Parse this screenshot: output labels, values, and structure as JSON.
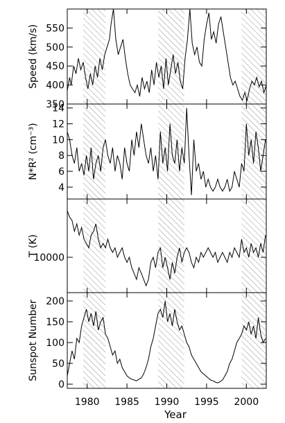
{
  "chart_data": {
    "type": "line",
    "x_label": "Year",
    "x_range": [
      1977.5,
      2002.5
    ],
    "x_ticks": [
      1980,
      1985,
      1990,
      1995,
      2000
    ],
    "x_tick_labels": [
      "1980",
      "1985",
      "1990",
      "1995",
      "2000"
    ],
    "hatched_intervals": [
      [
        1979.5,
        1982.3
      ],
      [
        1988.9,
        1992.2
      ],
      [
        1999.4,
        2002.5
      ]
    ],
    "panels": [
      {
        "ylabel": "Speed (km/s)",
        "ylim": [
          350,
          600
        ],
        "yticks": [
          350,
          400,
          450,
          500,
          550
        ],
        "ytick_labels": [
          "350",
          "400",
          "450",
          "500",
          "550"
        ],
        "series": [
          {
            "x": [
              1977.5,
              1977.8,
              1978.0,
              1978.3,
              1978.6,
              1978.9,
              1979.2,
              1979.5,
              1979.8,
              1980.1,
              1980.4,
              1980.7,
              1981.0,
              1981.3,
              1981.6,
              1981.9,
              1982.2,
              1982.5,
              1982.8,
              1983.0,
              1983.3,
              1983.6,
              1983.9,
              1984.2,
              1984.5,
              1984.8,
              1985.1,
              1985.4,
              1985.7,
              1986.0,
              1986.3,
              1986.6,
              1986.9,
              1987.2,
              1987.5,
              1987.8,
              1988.1,
              1988.4,
              1988.7,
              1989.0,
              1989.3,
              1989.6,
              1989.9,
              1990.2,
              1990.5,
              1990.8,
              1991.1,
              1991.4,
              1991.7,
              1992.0,
              1992.3,
              1992.6,
              1992.9,
              1993.2,
              1993.5,
              1993.8,
              1994.1,
              1994.4,
              1994.7,
              1995.0,
              1995.3,
              1995.6,
              1995.9,
              1996.2,
              1996.5,
              1996.8,
              1997.1,
              1997.4,
              1997.7,
              1998.0,
              1998.3,
              1998.6,
              1998.9,
              1999.2,
              1999.5,
              1999.8,
              2000.1,
              2000.4,
              2000.7,
              2001.0,
              2001.3,
              2001.6,
              2001.9,
              2002.2,
              2002.5
            ],
            "values": [
              385,
              420,
              400,
              450,
              430,
              470,
              440,
              460,
              420,
              390,
              430,
              400,
              450,
              420,
              470,
              440,
              480,
              500,
              520,
              560,
              600,
              520,
              480,
              500,
              520,
              470,
              430,
              400,
              390,
              380,
              400,
              370,
              420,
              390,
              410,
              380,
              440,
              400,
              460,
              420,
              450,
              390,
              470,
              400,
              440,
              480,
              430,
              460,
              410,
              390,
              470,
              520,
              600,
              510,
              480,
              500,
              460,
              450,
              520,
              560,
              590,
              520,
              540,
              510,
              560,
              580,
              540,
              500,
              460,
              420,
              400,
              410,
              390,
              370,
              360,
              380,
              360,
              390,
              410,
              400,
              420,
              395,
              410,
              380,
              400
            ]
          }
        ]
      },
      {
        "ylabel": "N*R² (cm⁻³)",
        "ylim": [
          2.5,
          14.5
        ],
        "yticks": [
          4,
          6,
          8,
          10,
          12,
          14
        ],
        "ytick_labels": [
          "4",
          "6",
          "8",
          "10",
          "12",
          "14"
        ],
        "series": [
          {
            "x": [
              1977.5,
              1977.8,
              1978.1,
              1978.4,
              1978.7,
              1979.0,
              1979.3,
              1979.6,
              1979.9,
              1980.2,
              1980.5,
              1980.8,
              1981.1,
              1981.4,
              1981.7,
              1982.0,
              1982.3,
              1982.6,
              1982.9,
              1983.2,
              1983.5,
              1983.8,
              1984.1,
              1984.4,
              1984.7,
              1985.0,
              1985.3,
              1985.6,
              1985.9,
              1986.2,
              1986.5,
              1986.8,
              1987.1,
              1987.4,
              1987.7,
              1988.0,
              1988.3,
              1988.6,
              1988.9,
              1989.2,
              1989.5,
              1989.8,
              1990.1,
              1990.4,
              1990.7,
              1991.0,
              1991.3,
              1991.6,
              1991.9,
              1992.2,
              1992.5,
              1992.8,
              1993.1,
              1993.4,
              1993.7,
              1994.0,
              1994.3,
              1994.6,
              1994.9,
              1995.2,
              1995.5,
              1995.8,
              1996.1,
              1996.4,
              1996.7,
              1997.0,
              1997.3,
              1997.6,
              1997.9,
              1998.2,
              1998.5,
              1998.8,
              1999.1,
              1999.4,
              1999.7,
              2000.0,
              2000.3,
              2000.6,
              2000.9,
              2001.2,
              2001.5,
              2001.8,
              2002.1,
              2002.4
            ],
            "values": [
              11,
              10,
              8,
              7,
              9,
              6,
              7,
              5.5,
              8,
              6,
              9,
              5,
              7,
              8,
              6,
              9,
              10,
              8,
              7,
              9,
              6,
              8,
              7,
              5,
              9,
              7,
              6,
              10,
              8,
              11,
              9,
              12,
              10,
              8,
              7,
              9,
              6,
              8,
              5,
              11,
              7,
              9,
              6,
              12,
              8,
              7,
              10,
              6,
              9,
              7,
              14,
              8,
              3,
              10,
              6,
              7,
              5,
              6,
              4,
              5,
              4,
              3.5,
              4,
              5,
              4,
              3.5,
              4,
              5,
              3.5,
              4,
              6,
              5,
              4,
              7,
              6,
              12,
              8,
              10,
              7,
              11,
              9,
              6,
              8,
              10
            ]
          }
        ]
      },
      {
        "ylabel": "T (K)",
        "ylim": [
          7000,
          18000
        ],
        "log_scale": true,
        "yticks": [
          10000
        ],
        "ytick_labels": [
          "10000"
        ],
        "series": [
          {
            "x": [
              1977.5,
              1977.8,
              1978.1,
              1978.4,
              1978.7,
              1979.0,
              1979.3,
              1979.6,
              1979.9,
              1980.2,
              1980.5,
              1980.8,
              1981.1,
              1981.4,
              1981.7,
              1982.0,
              1982.3,
              1982.6,
              1982.9,
              1983.2,
              1983.5,
              1983.8,
              1984.1,
              1984.4,
              1984.7,
              1985.0,
              1985.3,
              1985.6,
              1985.9,
              1986.2,
              1986.5,
              1986.8,
              1987.1,
              1987.4,
              1987.7,
              1988.0,
              1988.3,
              1988.6,
              1988.9,
              1989.2,
              1989.5,
              1989.8,
              1990.1,
              1990.4,
              1990.7,
              1991.0,
              1991.3,
              1991.6,
              1991.9,
              1992.2,
              1992.5,
              1992.8,
              1993.1,
              1993.4,
              1993.7,
              1994.0,
              1994.3,
              1994.6,
              1994.9,
              1995.2,
              1995.5,
              1995.8,
              1996.1,
              1996.4,
              1996.7,
              1997.0,
              1997.3,
              1997.6,
              1997.9,
              1998.2,
              1998.5,
              1998.8,
              1999.1,
              1999.4,
              1999.7,
              2000.0,
              2000.3,
              2000.6,
              2000.9,
              2001.2,
              2001.5,
              2001.8,
              2002.1,
              2002.4
            ],
            "values": [
              16000,
              15000,
              14500,
              13000,
              14000,
              12500,
              13500,
              12000,
              11500,
              11000,
              12500,
              13000,
              14000,
              12000,
              11000,
              11500,
              11000,
              12000,
              11000,
              10500,
              11000,
              10000,
              10500,
              11000,
              10000,
              9500,
              10000,
              9000,
              8500,
              8000,
              9000,
              8500,
              8000,
              7500,
              8000,
              9500,
              10000,
              9000,
              10500,
              11000,
              9000,
              10000,
              9000,
              8000,
              9500,
              8500,
              10000,
              11000,
              9500,
              10500,
              11000,
              10500,
              9500,
              9000,
              10000,
              9500,
              10500,
              10000,
              10500,
              11000,
              10500,
              10000,
              10500,
              9500,
              10000,
              10500,
              10000,
              9500,
              10500,
              10000,
              11000,
              10500,
              10000,
              12000,
              10500,
              11000,
              10000,
              11500,
              10500,
              11000,
              10000,
              11500,
              10500,
              12500
            ]
          }
        ]
      },
      {
        "ylabel": "Sunspot Number",
        "ylim": [
          -10,
          220
        ],
        "yticks": [
          0,
          50,
          100,
          150,
          200
        ],
        "ytick_labels": [
          "0",
          "50",
          "100",
          "150",
          "200"
        ],
        "series": [
          {
            "x": [
              1977.5,
              1977.8,
              1978.1,
              1978.4,
              1978.7,
              1979.0,
              1979.3,
              1979.6,
              1979.9,
              1980.2,
              1980.5,
              1980.8,
              1981.1,
              1981.4,
              1981.7,
              1982.0,
              1982.3,
              1982.6,
              1982.9,
              1983.2,
              1983.5,
              1983.8,
              1984.1,
              1984.4,
              1984.7,
              1985.0,
              1985.3,
              1985.6,
              1985.9,
              1986.2,
              1986.5,
              1986.8,
              1987.1,
              1987.4,
              1987.7,
              1988.0,
              1988.3,
              1988.6,
              1988.9,
              1989.2,
              1989.5,
              1989.8,
              1990.1,
              1990.4,
              1990.7,
              1991.0,
              1991.3,
              1991.6,
              1991.9,
              1992.2,
              1992.5,
              1992.8,
              1993.1,
              1993.4,
              1993.7,
              1994.0,
              1994.3,
              1994.6,
              1994.9,
              1995.2,
              1995.5,
              1995.8,
              1996.1,
              1996.4,
              1996.7,
              1997.0,
              1997.3,
              1997.6,
              1997.9,
              1998.2,
              1998.5,
              1998.8,
              1999.1,
              1999.4,
              1999.7,
              2000.0,
              2000.3,
              2000.6,
              2000.9,
              2001.2,
              2001.5,
              2001.8,
              2002.1,
              2002.4
            ],
            "values": [
              20,
              50,
              80,
              60,
              110,
              100,
              140,
              160,
              180,
              150,
              170,
              140,
              175,
              130,
              150,
              160,
              120,
              110,
              90,
              70,
              80,
              50,
              60,
              40,
              30,
              20,
              15,
              12,
              10,
              8,
              12,
              15,
              25,
              40,
              60,
              90,
              110,
              140,
              170,
              180,
              160,
              200,
              150,
              170,
              140,
              180,
              150,
              130,
              140,
              120,
              100,
              90,
              70,
              60,
              50,
              40,
              30,
              25,
              20,
              15,
              10,
              8,
              5,
              3,
              6,
              10,
              20,
              30,
              50,
              60,
              80,
              100,
              110,
              120,
              140,
              130,
              150,
              120,
              140,
              110,
              160,
              120,
              100,
              110
            ]
          }
        ]
      }
    ]
  }
}
